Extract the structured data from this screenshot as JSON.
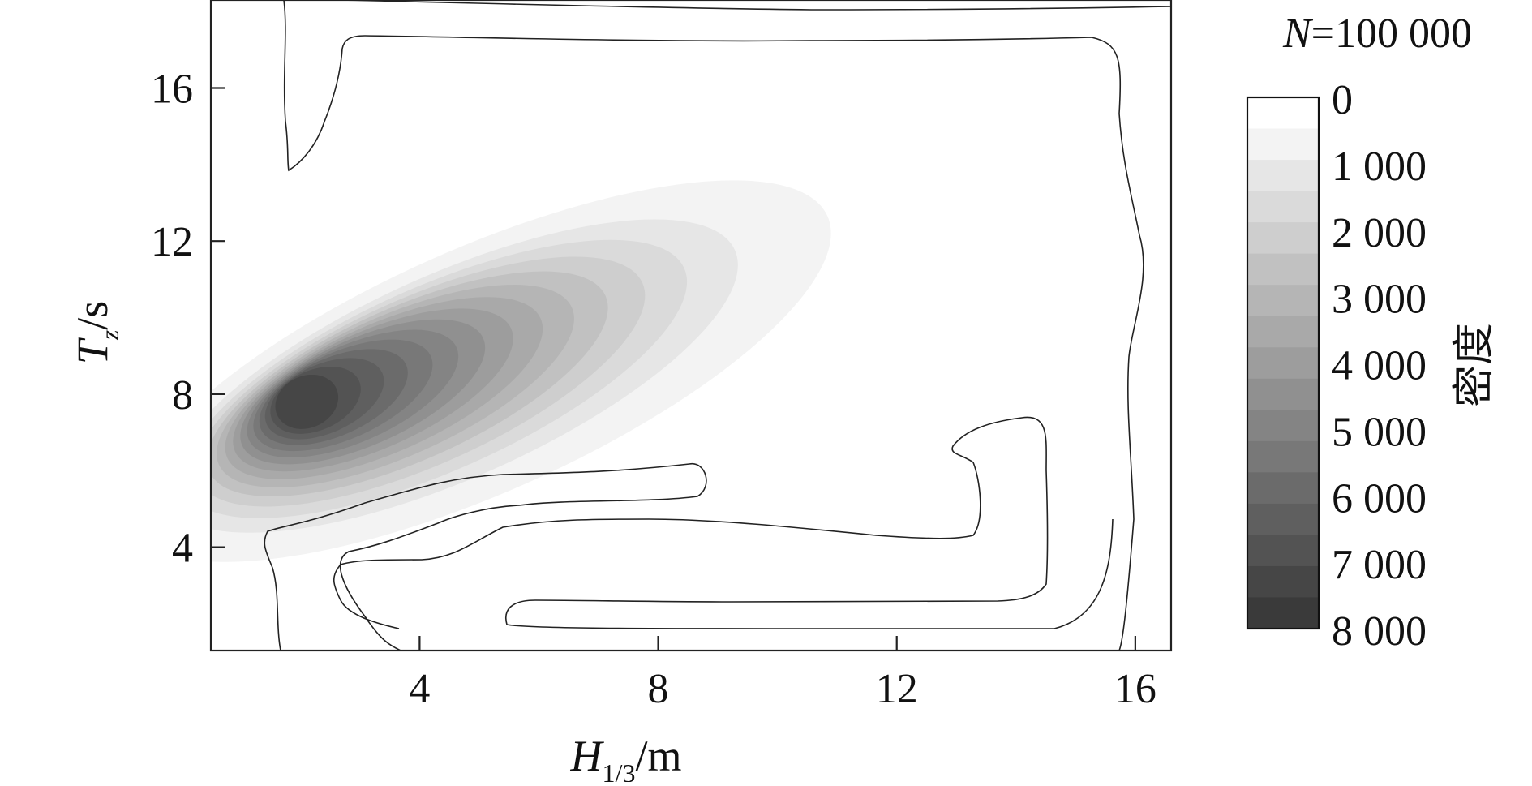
{
  "chart_data": {
    "type": "contour",
    "xlabel_main": "H",
    "xlabel_sub": "1/3",
    "xlabel_unit": "/m",
    "ylabel_main": "T",
    "ylabel_sub": "z",
    "ylabel_unit": "/s",
    "xlim": [
      0.5,
      16.6
    ],
    "ylim": [
      1.3,
      18.3
    ],
    "xticks": [
      4,
      8,
      12,
      16
    ],
    "yticks": [
      4,
      8,
      12,
      16
    ],
    "sample_label_var": "N",
    "sample_label_value": "=100 000",
    "colorbar": {
      "title": "密度",
      "min": 0,
      "max": 8000,
      "tick_values": [
        0,
        1000,
        2000,
        3000,
        4000,
        5000,
        6000,
        7000,
        8000
      ],
      "tick_labels": [
        "0",
        "1 000",
        "2 000",
        "3 000",
        "4 000",
        "5 000",
        "6 000",
        "7 000",
        "8 000"
      ],
      "levels": 16,
      "color_low": "#ffffff",
      "color_high": "#3a3a3a"
    },
    "density_peak": {
      "x": 2.0,
      "y": 7.8,
      "value": 8000
    },
    "outer_contour_level": 0
  }
}
